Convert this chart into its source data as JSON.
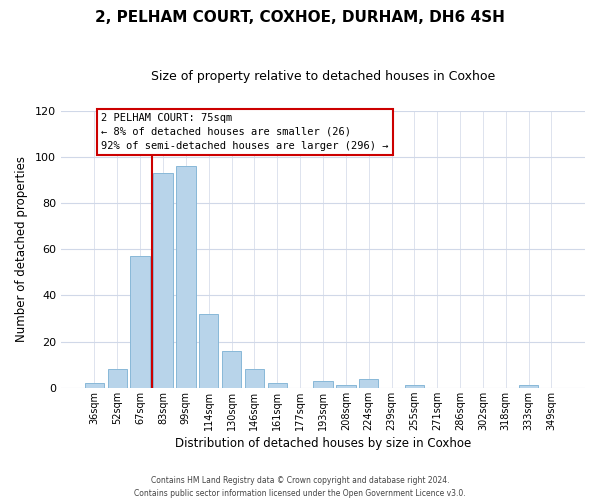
{
  "title": "2, PELHAM COURT, COXHOE, DURHAM, DH6 4SH",
  "subtitle": "Size of property relative to detached houses in Coxhoe",
  "xlabel": "Distribution of detached houses by size in Coxhoe",
  "ylabel": "Number of detached properties",
  "bar_color": "#b8d4ea",
  "bar_edge_color": "#7aaard4",
  "background_color": "#ffffff",
  "grid_color": "#d0d8e8",
  "categories": [
    "36sqm",
    "52sqm",
    "67sqm",
    "83sqm",
    "99sqm",
    "114sqm",
    "130sqm",
    "146sqm",
    "161sqm",
    "177sqm",
    "193sqm",
    "208sqm",
    "224sqm",
    "239sqm",
    "255sqm",
    "271sqm",
    "286sqm",
    "302sqm",
    "318sqm",
    "333sqm",
    "349sqm"
  ],
  "values": [
    2,
    8,
    57,
    93,
    96,
    32,
    16,
    8,
    2,
    0,
    3,
    1,
    4,
    0,
    1,
    0,
    0,
    0,
    0,
    1,
    0
  ],
  "ylim": [
    0,
    120
  ],
  "yticks": [
    0,
    20,
    40,
    60,
    80,
    100,
    120
  ],
  "marker_label": "2 PELHAM COURT: 75sqm",
  "annotation_line1": "← 8% of detached houses are smaller (26)",
  "annotation_line2": "92% of semi-detached houses are larger (296) →",
  "footer_line1": "Contains HM Land Registry data © Crown copyright and database right 2024.",
  "footer_line2": "Contains public sector information licensed under the Open Government Licence v3.0.",
  "annotation_box_color": "#ffffff",
  "annotation_box_edge_color": "#cc0000",
  "marker_line_color": "#cc0000",
  "bar_edge_color2": "#88b8d8"
}
